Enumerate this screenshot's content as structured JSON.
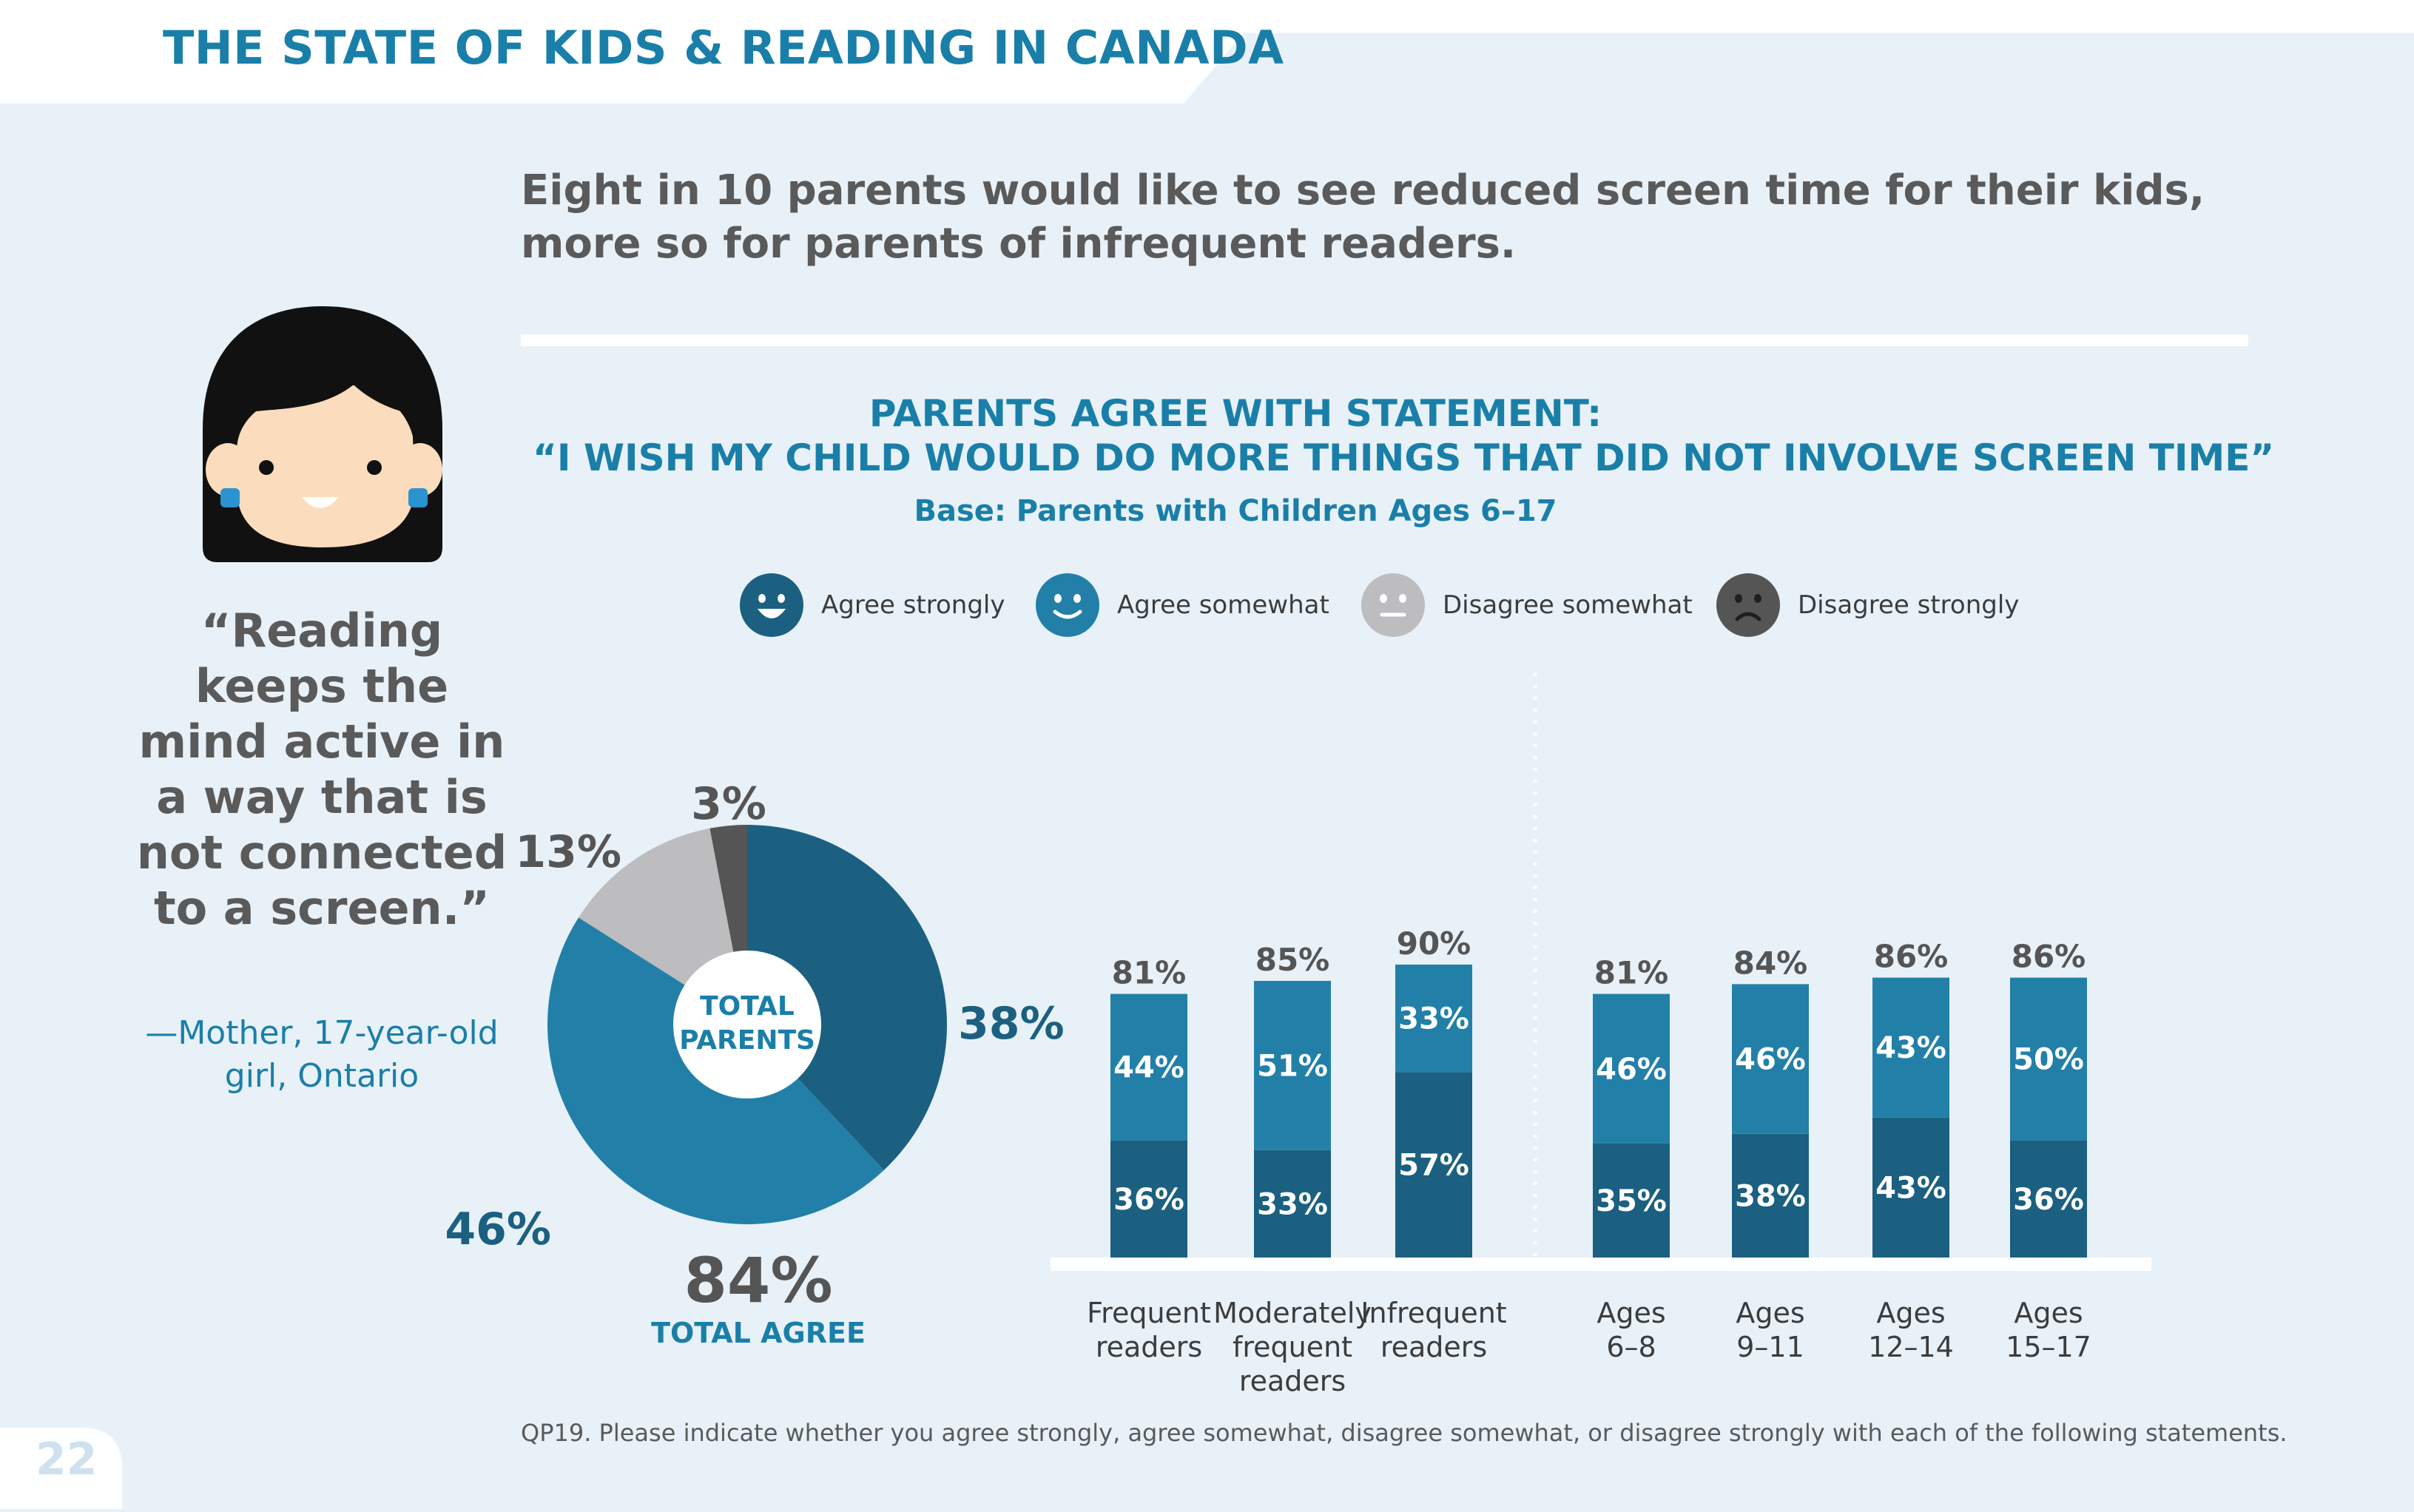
{
  "header": {
    "title": "THE STATE OF KIDS & READING IN CANADA"
  },
  "headline": "Eight in 10 parents would like to see reduced screen time for their kids, more so for parents of infrequent readers.",
  "quote": {
    "text": "“Reading keeps the mind active in a way that is not connected to a screen.”",
    "attribution": "—Mother, 17-year-old girl, Ontario"
  },
  "page_number": "22",
  "footnote": "QP19. Please indicate whether you agree strongly, agree somewhat, disagree somewhat, or disagree strongly with each of the following statements.",
  "colors": {
    "agree_strongly": "#1b6080",
    "agree_somewhat": "#2280a8",
    "disagree_somewhat": "#bdbcbf",
    "disagree_strongly": "#555555",
    "title_blue": "#1a7fa8",
    "text_gray": "#5a5a5a",
    "background": "#e8f1f8"
  },
  "chart_data": [
    {
      "type": "pie",
      "title": "PARENTS AGREE WITH STATEMENT:",
      "subtitle": "“I WISH MY CHILD WOULD DO MORE THINGS THAT DID NOT INVOLVE SCREEN TIME”",
      "base": "Base: Parents with Children Ages 6–17",
      "center_label": "TOTAL PARENTS",
      "total_value": "84%",
      "total_label": "TOTAL AGREE",
      "slices": [
        {
          "name": "Agree strongly",
          "value": 38,
          "label": "38%",
          "icon": "happy-face-icon"
        },
        {
          "name": "Agree somewhat",
          "value": 46,
          "label": "46%",
          "icon": "smile-face-icon"
        },
        {
          "name": "Disagree somewhat",
          "value": 13,
          "label": "13%",
          "icon": "neutral-face-icon"
        },
        {
          "name": "Disagree strongly",
          "value": 3,
          "label": "3%",
          "icon": "sad-face-icon"
        }
      ]
    },
    {
      "type": "bar",
      "stacked": true,
      "categories": [
        "Frequent readers",
        "Moderately frequent readers",
        "Infrequent readers",
        "Ages 6–8",
        "Ages 9–11",
        "Ages 12–14",
        "Ages 15–17"
      ],
      "category_lines": [
        [
          "Frequent",
          "readers"
        ],
        [
          "Moderately",
          "frequent",
          "readers"
        ],
        [
          "Infrequent",
          "readers"
        ],
        [
          "Ages",
          "6–8"
        ],
        [
          "Ages",
          "9–11"
        ],
        [
          "Ages",
          "12–14"
        ],
        [
          "Ages",
          "15–17"
        ]
      ],
      "series": [
        {
          "name": "Agree strongly",
          "values": [
            36,
            33,
            57,
            35,
            38,
            43,
            36
          ]
        },
        {
          "name": "Agree somewhat",
          "values": [
            44,
            51,
            33,
            46,
            46,
            43,
            50
          ]
        }
      ],
      "totals": [
        81,
        85,
        90,
        81,
        84,
        86,
        86
      ],
      "ylim": [
        0,
        100
      ],
      "grid": false
    }
  ]
}
